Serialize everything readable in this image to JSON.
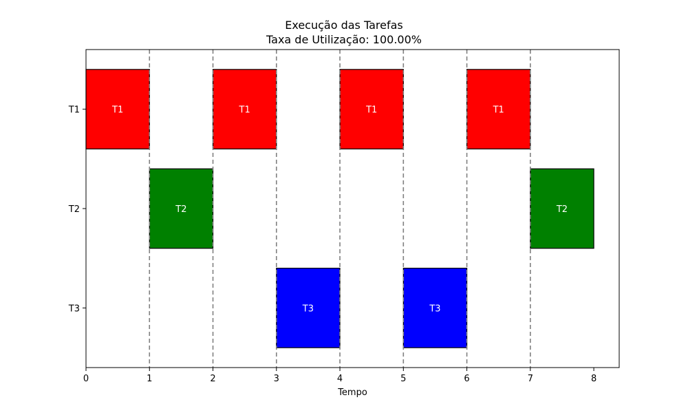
{
  "chart_data": {
    "type": "gantt",
    "title": "Execução das Tarefas",
    "subtitle": "Taxa de Utilização: 100.00%",
    "xlabel": "Tempo",
    "ylabel": "",
    "xlim": [
      0,
      8.4
    ],
    "xticks": [
      0,
      1,
      2,
      3,
      4,
      5,
      6,
      7,
      8
    ],
    "categories": [
      "T1",
      "T2",
      "T3"
    ],
    "grid": "vertical dashed lines at 1–7",
    "vlines": [
      1,
      2,
      3,
      4,
      5,
      6,
      7
    ],
    "colors": {
      "T1": "#ff0000",
      "T2": "#008000",
      "T3": "#0000ff"
    },
    "bars": [
      {
        "task": "T1",
        "start": 0,
        "end": 1
      },
      {
        "task": "T2",
        "start": 1,
        "end": 2
      },
      {
        "task": "T1",
        "start": 2,
        "end": 3
      },
      {
        "task": "T3",
        "start": 3,
        "end": 4
      },
      {
        "task": "T1",
        "start": 4,
        "end": 5
      },
      {
        "task": "T3",
        "start": 5,
        "end": 6
      },
      {
        "task": "T1",
        "start": 6,
        "end": 7
      },
      {
        "task": "T2",
        "start": 7,
        "end": 8
      }
    ]
  }
}
